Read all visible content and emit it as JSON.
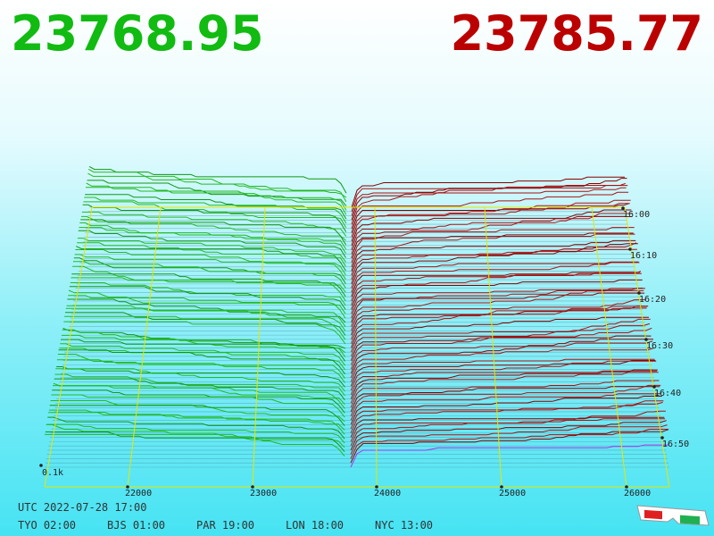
{
  "bid_price": "23768.95",
  "ask_price": "23785.77",
  "axis": {
    "price_labels": [
      "22000",
      "23000",
      "24000",
      "25000",
      "26000"
    ],
    "time_labels": [
      "16:00",
      "16:10",
      "16:20",
      "16:30",
      "16:40",
      "16:50"
    ],
    "depth_label": "0.1k"
  },
  "footer": {
    "utc": "UTC 2022-07-28 17:00",
    "zones": [
      "TYO 02:00",
      "BJS 01:00",
      "PAR 19:00",
      "LON 18:00",
      "NYC 13:00"
    ]
  }
}
